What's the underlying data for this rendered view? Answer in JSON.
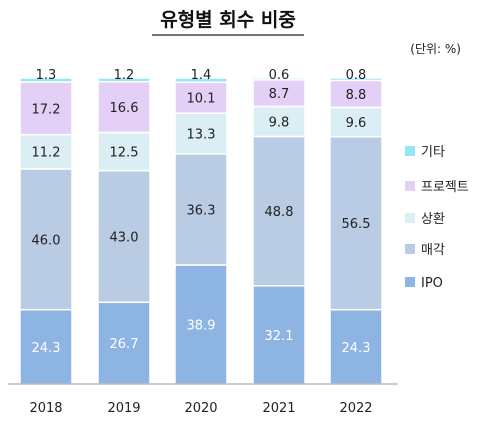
{
  "chart_data": {
    "type": "bar",
    "stacked": true,
    "title": "유형별 회수 비중",
    "unit": "(단위: %)",
    "xlabel": "",
    "ylabel": "",
    "ylim": [
      0,
      100
    ],
    "categories": [
      "2018",
      "2019",
      "2020",
      "2021",
      "2022"
    ],
    "series": [
      {
        "name": "IPO",
        "color": "#8eb4e3",
        "label_color": "#ffffff",
        "values": [
          24.3,
          26.7,
          38.9,
          32.1,
          24.3
        ]
      },
      {
        "name": "매각",
        "color": "#b9cce4",
        "label_color": "#222222",
        "values": [
          46.0,
          43.0,
          36.3,
          48.8,
          56.5
        ]
      },
      {
        "name": "상환",
        "color": "#dbeef4",
        "label_color": "#222222",
        "values": [
          11.2,
          12.5,
          13.3,
          9.8,
          9.6
        ]
      },
      {
        "name": "프로젝트",
        "color": "#e4d0f7",
        "label_color": "#222222",
        "values": [
          17.2,
          16.6,
          10.1,
          8.7,
          8.8
        ]
      },
      {
        "name": "기타",
        "color": "#93e6f2",
        "label_color": "#222222",
        "values": [
          1.3,
          1.2,
          1.4,
          0.6,
          0.8
        ]
      }
    ],
    "legend_position": "right",
    "legend_order": [
      "기타",
      "프로젝트",
      "상환",
      "매각",
      "IPO"
    ],
    "grid": false
  }
}
